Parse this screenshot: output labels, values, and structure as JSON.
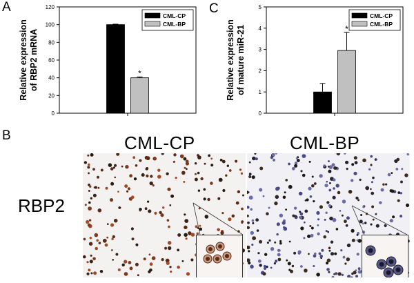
{
  "panels": {
    "a": "A",
    "b": "B",
    "c": "C"
  },
  "chart_data": [
    {
      "type": "bar",
      "categories": [
        "CML-CP",
        "CML-BP"
      ],
      "values": [
        100,
        40
      ],
      "errors": [
        0.5,
        0.8
      ],
      "significance": [
        "",
        "*"
      ],
      "ylabel_lines": [
        "Relative expression",
        "of RBP2 mRNA"
      ],
      "ylim": [
        0,
        120
      ],
      "yticks": [
        0,
        20,
        40,
        60,
        80,
        100,
        120
      ],
      "legend": [
        "CML-CP",
        "CML-BP"
      ],
      "legend_position": "top-right",
      "colors": [
        "#000000",
        "#c0c0c0"
      ]
    },
    {
      "type": "bar",
      "categories": [
        "CML-CP",
        "CML-BP"
      ],
      "values": [
        1.0,
        2.95
      ],
      "errors": [
        0.4,
        0.85
      ],
      "significance": [
        "",
        "*"
      ],
      "ylabel_lines": [
        "Relative expression",
        "of mature miR-21"
      ],
      "ylim": [
        0,
        5
      ],
      "yticks": [
        0,
        1,
        2,
        3,
        4,
        5
      ],
      "legend": [
        "CML-CP",
        "CML-BP"
      ],
      "legend_position": "top-right",
      "colors": [
        "#000000",
        "#c0c0c0"
      ]
    }
  ],
  "micrographs": {
    "row_label": "RBP2",
    "columns": [
      "CML-CP",
      "CML-BP"
    ]
  }
}
